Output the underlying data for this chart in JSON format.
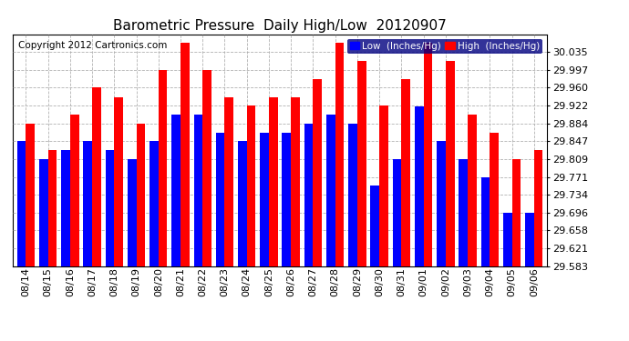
{
  "title": "Barometric Pressure  Daily High/Low  20120907",
  "copyright": "Copyright 2012 Cartronics.com",
  "legend_low": "Low  (Inches/Hg)",
  "legend_high": "High  (Inches/Hg)",
  "categories": [
    "08/14",
    "08/15",
    "08/16",
    "08/17",
    "08/18",
    "08/19",
    "08/20",
    "08/21",
    "08/22",
    "08/23",
    "08/24",
    "08/25",
    "08/26",
    "08/27",
    "08/28",
    "08/29",
    "08/30",
    "08/31",
    "09/01",
    "09/02",
    "09/03",
    "09/04",
    "09/05",
    "09/06"
  ],
  "low_values": [
    29.847,
    29.809,
    29.828,
    29.847,
    29.828,
    29.809,
    29.847,
    29.903,
    29.903,
    29.865,
    29.847,
    29.865,
    29.865,
    29.884,
    29.903,
    29.884,
    29.753,
    29.809,
    29.921,
    29.847,
    29.809,
    29.771,
    29.696,
    29.696
  ],
  "high_values": [
    29.884,
    29.828,
    29.903,
    29.96,
    29.94,
    29.884,
    29.997,
    30.054,
    29.997,
    29.94,
    29.922,
    29.94,
    29.94,
    29.978,
    30.054,
    30.016,
    29.922,
    29.978,
    30.054,
    30.016,
    29.903,
    29.865,
    29.809,
    29.828
  ],
  "ylim_min": 29.583,
  "ylim_max": 30.073,
  "bar_bottom": 29.583,
  "yticks": [
    29.583,
    29.621,
    29.658,
    29.696,
    29.734,
    29.771,
    29.809,
    29.847,
    29.884,
    29.922,
    29.96,
    29.997,
    30.035
  ],
  "low_color": "#0000ff",
  "high_color": "#ff0000",
  "bg_color": "#ffffff",
  "grid_color": "#aaaaaa",
  "title_fontsize": 11,
  "copyright_fontsize": 7.5,
  "tick_fontsize": 8,
  "legend_fontsize": 7.5
}
